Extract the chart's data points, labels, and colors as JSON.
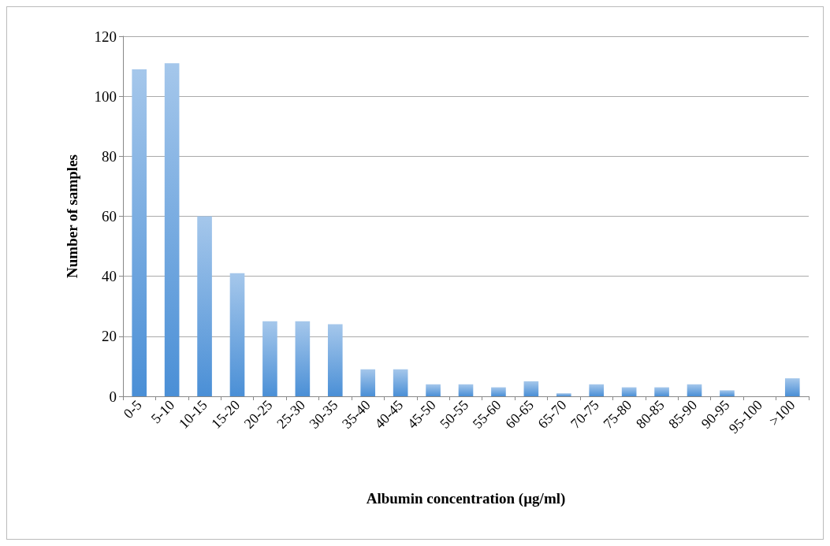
{
  "chart_data": {
    "type": "bar",
    "xlabel": "Albumin concentration (µg/ml)",
    "ylabel": "Number of samples",
    "categories": [
      "0-5",
      "5-10",
      "10-15",
      "15-20",
      "20-25",
      "25-30",
      "30-35",
      "35-40",
      "40-45",
      "45-50",
      "50-55",
      "55-60",
      "60-65",
      "65-70",
      "70-75",
      "75-80",
      "80-85",
      "85-90",
      "90-95",
      "95-100",
      ">100"
    ],
    "values": [
      109,
      111,
      60,
      41,
      25,
      25,
      24,
      9,
      9,
      4,
      4,
      3,
      5,
      1,
      4,
      3,
      3,
      4,
      2,
      0,
      6
    ],
    "color": "#4a8fd6",
    "ylim": [
      0,
      120
    ],
    "yticks": [
      0,
      20,
      40,
      60,
      80,
      100,
      120
    ],
    "grid": "y"
  }
}
